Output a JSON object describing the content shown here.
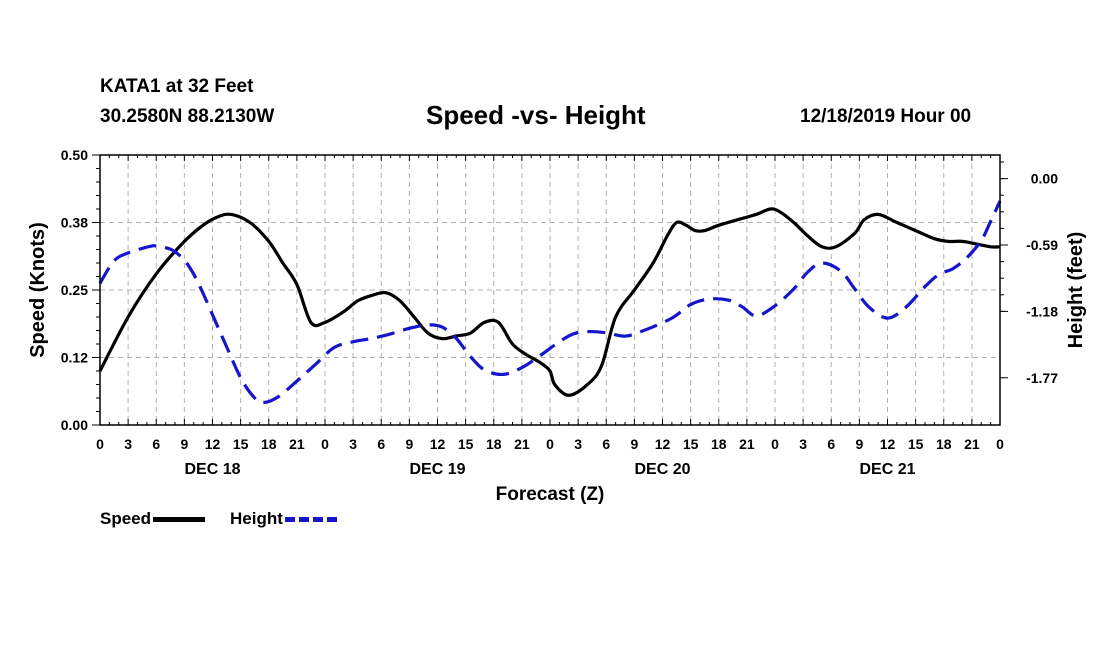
{
  "header": {
    "station": "KATA1 at 32 Feet",
    "coordinates": "30.2580N 88.2130W",
    "title": "Speed -vs- Height",
    "run_date": "12/18/2019 Hour 00"
  },
  "colors": {
    "speed": "#000000",
    "height": "#1515cc",
    "grid": "#b0b0b0"
  },
  "legend": {
    "speed_label": "Speed",
    "height_label": "Height"
  },
  "chart_data": {
    "type": "line",
    "title": "Speed -vs- Height",
    "xlabel": "Forecast (Z)",
    "ylabel_left": "Speed (Knots)",
    "ylabel_right": "Height (feet)",
    "x_hour_range": [
      0,
      96
    ],
    "x_tick_labels": [
      "0",
      "3",
      "6",
      "9",
      "12",
      "15",
      "18",
      "21",
      "0",
      "3",
      "6",
      "9",
      "12",
      "15",
      "18",
      "21",
      "0",
      "3",
      "6",
      "9",
      "12",
      "15",
      "18",
      "21",
      "0",
      "3",
      "6",
      "9",
      "12",
      "15",
      "18",
      "21",
      "0"
    ],
    "day_labels": [
      {
        "label": "DEC 18",
        "hour": 12
      },
      {
        "label": "DEC 19",
        "hour": 36
      },
      {
        "label": "DEC 20",
        "hour": 60
      },
      {
        "label": "DEC 21",
        "hour": 84
      }
    ],
    "left_axis": {
      "ylim": [
        0,
        0.5
      ],
      "ticks": [
        0.0,
        0.125,
        0.25,
        0.375,
        0.5
      ],
      "tick_labels": [
        "0.00",
        "0.12",
        "0.25",
        "0.38",
        "0.50"
      ]
    },
    "right_axis": {
      "ylim": [
        -2.19,
        0.21
      ],
      "ticks": [
        0.0,
        -0.59,
        -1.18,
        -1.77
      ],
      "tick_labels": [
        "0.00",
        "-0.59",
        "-1.18",
        "-1.77"
      ]
    },
    "grid": true,
    "series": [
      {
        "name": "Speed",
        "axis": "left",
        "style": "solid",
        "hours": [
          0,
          3,
          6,
          9,
          11,
          12.5,
          14,
          16,
          18,
          19.5,
          21,
          22.5,
          24,
          26,
          27.5,
          29,
          30.5,
          32,
          33.5,
          35,
          36.5,
          38,
          39.5,
          41,
          42.5,
          44,
          45.5,
          47,
          48,
          48.5,
          50,
          52,
          53.5,
          55,
          57,
          59,
          60.5,
          61.5,
          62.5,
          63.5,
          64.5,
          66,
          68,
          70,
          71.5,
          72.5,
          74,
          75.5,
          77,
          78.5,
          80.5,
          81.5,
          83,
          85,
          87,
          89,
          90.5,
          92,
          93.5,
          95,
          96
        ],
        "values": [
          0.1,
          0.2,
          0.28,
          0.34,
          0.37,
          0.385,
          0.39,
          0.375,
          0.34,
          0.3,
          0.26,
          0.19,
          0.19,
          0.21,
          0.23,
          0.24,
          0.245,
          0.23,
          0.2,
          0.17,
          0.16,
          0.165,
          0.17,
          0.19,
          0.19,
          0.15,
          0.13,
          0.115,
          0.1,
          0.075,
          0.055,
          0.075,
          0.11,
          0.2,
          0.25,
          0.3,
          0.35,
          0.375,
          0.37,
          0.36,
          0.36,
          0.37,
          0.38,
          0.39,
          0.4,
          0.395,
          0.375,
          0.35,
          0.33,
          0.33,
          0.355,
          0.38,
          0.39,
          0.375,
          0.36,
          0.345,
          0.34,
          0.34,
          0.335,
          0.33,
          0.33
        ]
      },
      {
        "name": "Height",
        "axis": "right",
        "style": "dashed",
        "hours": [
          0,
          1.5,
          3,
          4.5,
          5.5,
          6,
          8,
          10,
          13,
          15,
          16.5,
          17.5,
          19,
          21,
          23,
          25,
          27,
          29,
          31,
          33,
          35,
          36.5,
          38,
          39.5,
          41,
          43,
          45,
          47,
          49,
          50.5,
          52,
          54,
          56,
          58,
          61,
          63,
          65,
          67,
          68.5,
          70,
          72,
          74,
          75.5,
          77,
          79,
          80.5,
          82,
          84,
          86,
          88,
          89.5,
          91,
          92.5,
          94,
          95,
          96
        ],
        "values": [
          -0.93,
          -0.73,
          -0.66,
          -0.62,
          -0.6,
          -0.6,
          -0.65,
          -0.85,
          -1.4,
          -1.77,
          -1.95,
          -1.99,
          -1.94,
          -1.8,
          -1.65,
          -1.5,
          -1.45,
          -1.42,
          -1.38,
          -1.33,
          -1.3,
          -1.32,
          -1.42,
          -1.58,
          -1.7,
          -1.74,
          -1.68,
          -1.57,
          -1.45,
          -1.38,
          -1.36,
          -1.37,
          -1.4,
          -1.35,
          -1.24,
          -1.12,
          -1.07,
          -1.08,
          -1.14,
          -1.22,
          -1.13,
          -0.98,
          -0.83,
          -0.75,
          -0.82,
          -0.98,
          -1.14,
          -1.24,
          -1.14,
          -0.96,
          -0.85,
          -0.8,
          -0.7,
          -0.55,
          -0.38,
          -0.2
        ]
      }
    ]
  }
}
